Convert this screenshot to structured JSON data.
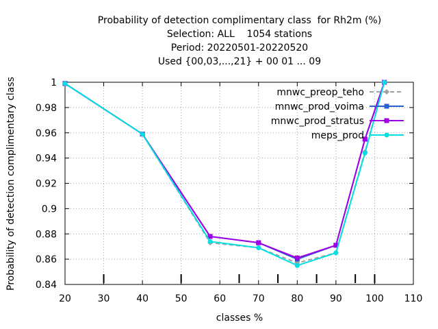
{
  "chart_data": {
    "type": "line",
    "title_lines": [
      "Probability of detection complimentary class  for Rh2m (%)",
      "Selection: ALL    1054 stations",
      "Period: 20220501-20220520",
      "Used {00,03,...,21} + 00 01 ... 09"
    ],
    "xlabel": "classes %",
    "ylabel": "Probability of detection complimentary class",
    "xlim": [
      20,
      110
    ],
    "ylim": [
      0.84,
      1.0
    ],
    "xticks": [
      20,
      30,
      40,
      50,
      60,
      70,
      80,
      90,
      100,
      110
    ],
    "yticks": [
      0.84,
      0.86,
      0.88,
      0.9,
      0.92,
      0.94,
      0.96,
      0.98,
      1
    ],
    "ytick_labels": [
      "0.84",
      "0.86",
      "0.88",
      "0.9",
      "0.92",
      "0.94",
      "0.96",
      "0.98",
      "1"
    ],
    "grid": true,
    "legend_position": "top-right",
    "class_marks": [
      30,
      50,
      65,
      75,
      85,
      95,
      100
    ],
    "series": [
      {
        "name": "mnwc_preop_teho",
        "color": "#a0a0a0",
        "dash": true,
        "marker": "diamond",
        "x": [
          20,
          40,
          57.5,
          70,
          80,
          90,
          97.5,
          102.5
        ],
        "y": [
          0.999,
          0.959,
          0.873,
          0.869,
          0.857,
          0.865,
          0.945,
          1.0
        ]
      },
      {
        "name": "mnwc_prod_voima",
        "color": "#2a5fcf",
        "dash": false,
        "marker": "square",
        "x": [
          20,
          40,
          57.5,
          70,
          80,
          90,
          97.5,
          102.5
        ],
        "y": [
          0.999,
          0.959,
          0.878,
          0.873,
          0.86,
          0.871,
          0.955,
          1.0
        ]
      },
      {
        "name": "mnwc_prod_stratus",
        "color": "#a000e6",
        "dash": false,
        "marker": "square",
        "x": [
          20,
          40,
          57.5,
          70,
          80,
          90,
          97.5,
          102.5
        ],
        "y": [
          0.999,
          0.959,
          0.878,
          0.873,
          0.861,
          0.871,
          0.955,
          1.0
        ]
      },
      {
        "name": "meps_prod",
        "color": "#00e0e0",
        "dash": false,
        "marker": "circle",
        "x": [
          20,
          40,
          57.5,
          70,
          80,
          90,
          97.5,
          102.5
        ],
        "y": [
          0.999,
          0.959,
          0.874,
          0.869,
          0.855,
          0.865,
          0.944,
          1.0
        ]
      }
    ]
  }
}
